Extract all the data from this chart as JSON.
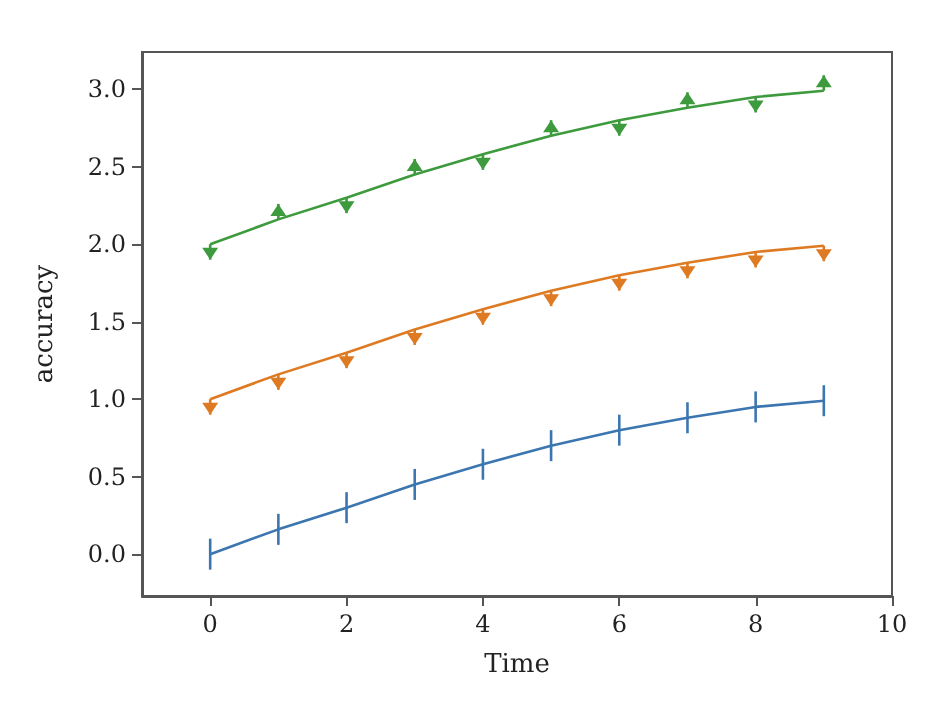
{
  "chart_data": {
    "type": "line",
    "xlabel": "Time",
    "ylabel": "accuracy",
    "x": [
      0,
      1,
      2,
      3,
      4,
      5,
      6,
      7,
      8,
      9
    ],
    "series": [
      {
        "color": "#3b76b0",
        "values": [
          0,
          0.16,
          0.3,
          0.45,
          0.58,
          0.7,
          0.8,
          0.88,
          0.95,
          0.99
        ],
        "errors": [
          0.1,
          0.1,
          0.1,
          0.1,
          0.1,
          0.1,
          0.1,
          0.1,
          0.1,
          0.1
        ]
      },
      {
        "color": "#de7a22",
        "values": [
          1,
          1.16,
          1.3,
          1.45,
          1.58,
          1.7,
          1.8,
          1.88,
          1.95,
          1.99
        ],
        "errors": [
          [
            0.9,
            1
          ],
          [
            1.06,
            1.16
          ],
          [
            1.2,
            1.3
          ],
          [
            1.35,
            1.45
          ],
          [
            1.48,
            1.58
          ],
          [
            1.6,
            1.7
          ],
          [
            1.7,
            1.8
          ],
          [
            1.78,
            1.88
          ],
          [
            1.85,
            1.95
          ],
          [
            1.89,
            1.99
          ]
        ]
      },
      {
        "color": "#3d9a3d",
        "values": [
          2,
          2.16,
          2.3,
          2.45,
          2.58,
          2.7,
          2.8,
          2.88,
          2.95,
          2.99
        ],
        "errors": [
          [
            1.9,
            2
          ],
          [
            2.16,
            2.26
          ],
          [
            2.2,
            2.3
          ],
          [
            2.45,
            2.55
          ],
          [
            2.48,
            2.58
          ],
          [
            2.7,
            2.8
          ],
          [
            2.7,
            2.8
          ],
          [
            2.88,
            2.98
          ],
          [
            2.85,
            2.95
          ],
          [
            2.99,
            3.09
          ]
        ]
      }
    ],
    "xlim": [
      -1,
      10
    ],
    "xticks": [
      0,
      2,
      4,
      6,
      8,
      10
    ],
    "ylim": [
      -0.27,
      3.24
    ],
    "yticks": [
      {
        "value": 0,
        "label": "0.0"
      },
      {
        "value": 0.5,
        "label": "0.5"
      },
      {
        "value": 1,
        "label": "1.0"
      },
      {
        "value": 1.5,
        "label": "1.5"
      },
      {
        "value": 2,
        "label": "2.0"
      },
      {
        "value": 2.5,
        "label": "2.5"
      },
      {
        "value": 3,
        "label": "3.0"
      }
    ],
    "marker": "none",
    "line_style": "solid"
  }
}
